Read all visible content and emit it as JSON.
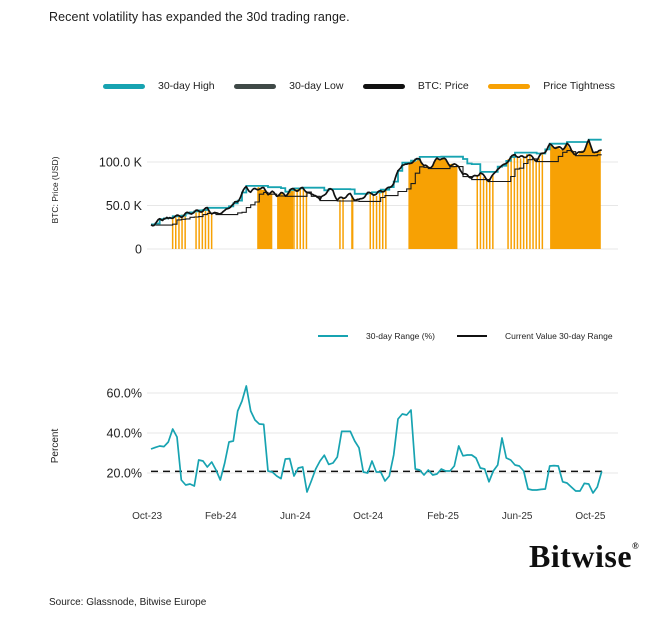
{
  "title": "Recent volatility has expanded the 30d trading range.",
  "source": "Source: Glassnode, Bitwise Europe",
  "logo": {
    "text": "Bitwise",
    "registered": "®"
  },
  "colors": {
    "teal": "#17A3B1",
    "orange": "#F7A104",
    "black": "#111111",
    "dark_gray": "#3F4947",
    "grid": "#E7E7E7",
    "text": "#1e1e1e"
  },
  "chart_data": [
    {
      "type": "line+bar",
      "y_axis_label": "BTC: Price (USD)",
      "legend": [
        {
          "label": "30-day High",
          "color": "teal"
        },
        {
          "label": "30-day Low",
          "color": "dark_gray"
        },
        {
          "label": "BTC: Price",
          "color": "black"
        },
        {
          "label": "Price Tightness",
          "color": "orange"
        }
      ],
      "y_ticks": [
        {
          "label": "100.0 K",
          "value": 100
        },
        {
          "label": "50.0 K",
          "value": 50
        },
        {
          "label": "0",
          "value": 0
        }
      ],
      "ylim_thoususd": [
        0,
        136
      ],
      "x_domain_weeks": 104,
      "x_period": "Oct-2023 to Oct-2025, weekly samples",
      "rolling_window_weeks": 5,
      "price_k": [
        27.9,
        28.9,
        33.9,
        34.7,
        35.1,
        37.0,
        37.4,
        37.8,
        40.2,
        41.5,
        42.6,
        43.7,
        44.2,
        46.6,
        41.7,
        40.1,
        42.1,
        42.8,
        48.3,
        51.6,
        54.8,
        64.0,
        71.5,
        66.0,
        68.5,
        70.0,
        69.0,
        64.0,
        64.9,
        61.9,
        63.9,
        61.5,
        67.0,
        68.6,
        67.8,
        69.4,
        66.5,
        61.5,
        62.8,
        56.5,
        63.2,
        67.8,
        67.5,
        56.0,
        58.8,
        60.5,
        62.5,
        57.4,
        55.5,
        60.1,
        63.5,
        64.2,
        62.3,
        67.2,
        67.1,
        70.1,
        76.3,
        88.5,
        97.8,
        95.9,
        100.0,
        101.5,
        104.3,
        95.3,
        93.8,
        96.0,
        103.8,
        104.5,
        101.9,
        96.8,
        96.2,
        96.2,
        84.5,
        86.2,
        81.0,
        84.3,
        87.3,
        82.5,
        78.8,
        84.6,
        93.2,
        94.3,
        99.8,
        104.2,
        109.2,
        105.3,
        105.6,
        108.2,
        105.1,
        102.0,
        108.1,
        112.8,
        119.2,
        117.8,
        116.2,
        114.8,
        121.2,
        113.6,
        108.9,
        110.4,
        114.2,
        123.8,
        112.8,
        109.9,
        115.2
      ],
      "tightness_intervals": [
        {
          "from": 5.0,
          "to": 8.2,
          "style": "striped"
        },
        {
          "from": 10.4,
          "to": 14.3,
          "style": "striped"
        },
        {
          "from": 24.5,
          "to": 28.0,
          "style": "solid"
        },
        {
          "from": 29.1,
          "to": 32.8,
          "style": "solid"
        },
        {
          "from": 33.0,
          "to": 36.2,
          "style": "striped"
        },
        {
          "from": 43.6,
          "to": 44.9,
          "style": "striped"
        },
        {
          "from": 46.2,
          "to": 46.7,
          "style": "solid"
        },
        {
          "from": 50.6,
          "to": 54.5,
          "style": "striped"
        },
        {
          "from": 59.4,
          "to": 70.7,
          "style": "solid"
        },
        {
          "from": 75.3,
          "to": 79.4,
          "style": "striped"
        },
        {
          "from": 82.4,
          "to": 90.6,
          "style": "striped"
        },
        {
          "from": 92.1,
          "to": 103.8,
          "style": "solid"
        }
      ]
    },
    {
      "type": "line",
      "y_axis_label": "Percent",
      "legend": [
        {
          "label": "30-day Range (%)",
          "color": "teal"
        },
        {
          "label": "Current Value 30-day Range",
          "color": "black"
        }
      ],
      "y_ticks": [
        {
          "label": "60.0%",
          "value": 60
        },
        {
          "label": "40.0%",
          "value": 40
        },
        {
          "label": "20.0%",
          "value": 20
        }
      ],
      "ylim_pct": [
        8,
        66
      ],
      "x_ticks": [
        {
          "label": "Oct-23",
          "week": -0.9
        },
        {
          "label": "Feb-24",
          "week": 16.1
        },
        {
          "label": "Jun-24",
          "week": 33.3
        },
        {
          "label": "Oct-24",
          "week": 50.1
        },
        {
          "label": "Feb-25",
          "week": 67.4
        },
        {
          "label": "Jun-25",
          "week": 84.5
        },
        {
          "label": "Oct-25",
          "week": 101.4
        }
      ],
      "range_pct": [
        32.0,
        32.8,
        33.5,
        33.2,
        35.5,
        42.0,
        38.0,
        16.5,
        14.0,
        14.5,
        13.5,
        26.5,
        26.0,
        23.0,
        25.5,
        21.5,
        16.5,
        25.0,
        35.5,
        36.0,
        51.0,
        56.0,
        63.5,
        51.0,
        46.5,
        44.5,
        44.3,
        21.0,
        20.5,
        18.5,
        17.2,
        27.0,
        27.2,
        18.5,
        22.5,
        23.0,
        10.5,
        16.0,
        22.0,
        26.0,
        28.9,
        24.3,
        25.0,
        28.0,
        40.8,
        40.8,
        40.8,
        36.0,
        32.6,
        20.5,
        20.0,
        26.0,
        20.5,
        20.5,
        16.0,
        18.5,
        29.0,
        47.0,
        49.5,
        49.0,
        51.5,
        22.0,
        21.5,
        19.0,
        21.5,
        19.0,
        19.5,
        22.0,
        21.0,
        21.0,
        23.5,
        33.5,
        28.6,
        29.0,
        29.0,
        27.5,
        22.5,
        22.0,
        15.6,
        21.0,
        24.0,
        37.5,
        27.5,
        26.5,
        24.0,
        23.5,
        21.0,
        12.0,
        11.5,
        11.5,
        11.8,
        12.0,
        23.5,
        23.7,
        23.5,
        15.6,
        15.0,
        13.0,
        11.0,
        11.0,
        14.8,
        14.5,
        10.0,
        13.0,
        20.8
      ],
      "current_value_pct": 20.8
    }
  ]
}
